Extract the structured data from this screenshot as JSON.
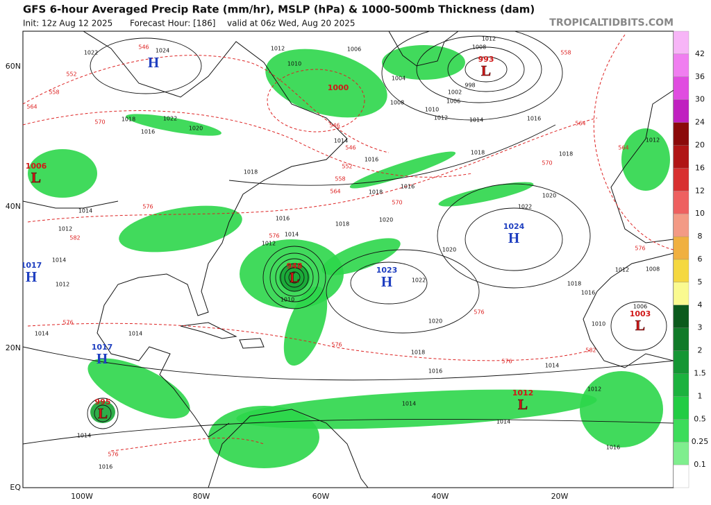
{
  "header": {
    "title": "GFS 6-hour Averaged Precip Rate (mm/hr), MSLP (hPa) & 1000-500mb Thickness (dam)",
    "subtitle": [
      "Init: 12z Aug 12 2025",
      "Forecast Hour: [186]",
      "valid at 06z Wed, Aug 20 2025"
    ],
    "site": "TROPICALTIDBITS.COM"
  },
  "map": {
    "lat_labels": [
      "60N",
      "40N",
      "20N",
      "EQ"
    ],
    "lon_labels": [
      "100W",
      "80W",
      "60W",
      "40W",
      "20W"
    ],
    "centers": [
      {
        "symbol": "H"
      },
      {
        "symbol": "L",
        "value": 1006
      },
      {
        "symbol": "H",
        "value": 1017
      },
      {
        "symbol": "H",
        "value": 1017
      },
      {
        "symbol": "L",
        "value": 995
      },
      {
        "symbol": "L",
        "value": 948
      },
      {
        "value": 1000
      },
      {
        "symbol": "L",
        "value": 993
      },
      {
        "symbol": "H",
        "value": 1024
      },
      {
        "symbol": "H",
        "value": 1023
      },
      {
        "symbol": "L",
        "value": 1012
      },
      {
        "symbol": "L",
        "value": 1003
      }
    ],
    "mslp_labels": [
      1022,
      1024,
      1018,
      1016,
      1020,
      1022,
      1012,
      1010,
      1006,
      1012,
      1008,
      1004,
      998,
      1002,
      1006,
      1008,
      1010,
      1012,
      1014,
      1016,
      1012,
      1018,
      1018,
      1018,
      1016,
      1018,
      1016,
      1014,
      1020,
      1022,
      1020,
      1018,
      1016,
      1014,
      1012,
      1020,
      1022,
      1018,
      1016,
      1012,
      1008,
      1006,
      1010,
      1014,
      1016,
      1018,
      1020,
      1014,
      1014,
      1012,
      1016,
      1016,
      1014,
      1012,
      1014,
      1014,
      1012,
      1014,
      1010,
      1014
    ],
    "thickness_labels": [
      546,
      552,
      558,
      564,
      570,
      558,
      564,
      564,
      570,
      546,
      546,
      552,
      558,
      564,
      570,
      576,
      582,
      576,
      576,
      576,
      576,
      582,
      576,
      576,
      576
    ]
  },
  "colorbar": {
    "labels": [
      42,
      36,
      30,
      24,
      20,
      16,
      12,
      10,
      8,
      6,
      5,
      4,
      3,
      2,
      1.5,
      1,
      0.5,
      0.25,
      0.1
    ],
    "colors": [
      "#f7b5f7",
      "#f07ef0",
      "#e04ce0",
      "#c020c0",
      "#8b0a0a",
      "#b01515",
      "#d83030",
      "#ee6060",
      "#f39a85",
      "#f0b040",
      "#f5d840",
      "#fafa90",
      "#0b5a1c",
      "#107a28",
      "#159634",
      "#1cb23e",
      "#22cc44",
      "#3cdc5a",
      "#7fee8e",
      "#ffffff"
    ]
  }
}
